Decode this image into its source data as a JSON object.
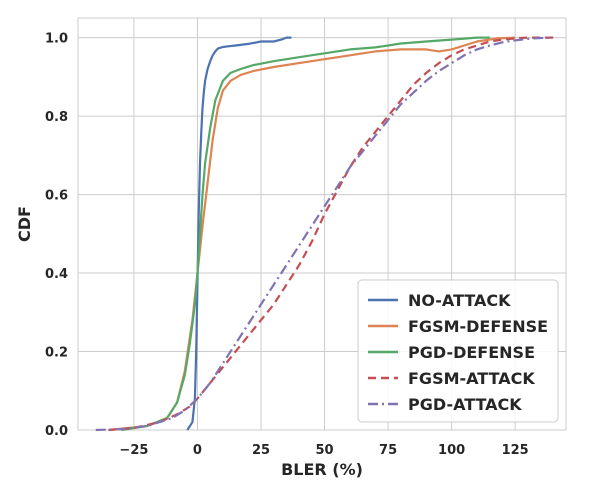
{
  "chart_data": {
    "type": "line",
    "title": "",
    "xlabel": "BLER (%)",
    "ylabel": "CDF",
    "xlim": [
      -47,
      145
    ],
    "ylim": [
      0,
      1.05
    ],
    "xticks": [
      -25,
      0,
      25,
      50,
      75,
      100,
      125
    ],
    "xtick_labels": [
      "−25",
      "0",
      "25",
      "50",
      "75",
      "100",
      "125"
    ],
    "yticks": [
      0,
      0.2,
      0.4,
      0.6,
      0.8,
      1.0
    ],
    "ytick_labels": [
      "0.0",
      "0.2",
      "0.4",
      "0.6",
      "0.8",
      "1.0"
    ],
    "grid": true,
    "legend_position": "lower-right",
    "series": [
      {
        "name": "NO-ATTACK",
        "color": "#4c72b0",
        "dash": "solid",
        "x": [
          -4,
          -2,
          -1,
          -0.5,
          0,
          0.5,
          1,
          1.5,
          2,
          2.5,
          3,
          4,
          5,
          6,
          7,
          8,
          10,
          12,
          15,
          20,
          25,
          30,
          33,
          35,
          37
        ],
        "y": [
          0,
          0.02,
          0.08,
          0.2,
          0.38,
          0.55,
          0.68,
          0.76,
          0.82,
          0.86,
          0.89,
          0.92,
          0.94,
          0.955,
          0.965,
          0.972,
          0.976,
          0.978,
          0.98,
          0.984,
          0.99,
          0.99,
          0.995,
          1.0,
          1.0
        ]
      },
      {
        "name": "FGSM-DEFENSE",
        "color": "#dd8452",
        "dash": "solid",
        "x": [
          -35,
          -20,
          -12,
          -8,
          -5,
          -2,
          0,
          2,
          4,
          6,
          8,
          10,
          13,
          17,
          22,
          30,
          40,
          50,
          60,
          70,
          80,
          90,
          95,
          100,
          105,
          110,
          118,
          125
        ],
        "y": [
          0,
          0.01,
          0.03,
          0.07,
          0.15,
          0.28,
          0.4,
          0.52,
          0.63,
          0.74,
          0.82,
          0.865,
          0.89,
          0.905,
          0.915,
          0.925,
          0.935,
          0.945,
          0.955,
          0.965,
          0.97,
          0.97,
          0.965,
          0.97,
          0.98,
          0.99,
          0.998,
          1.0
        ]
      },
      {
        "name": "PGD-DEFENSE",
        "color": "#55a868",
        "dash": "solid",
        "x": [
          -30,
          -20,
          -12,
          -8,
          -5,
          -3,
          -1,
          0,
          1,
          2,
          3,
          5,
          7,
          10,
          13,
          17,
          22,
          30,
          40,
          50,
          60,
          70,
          75,
          80,
          90,
          100,
          110,
          115
        ],
        "y": [
          0,
          0.01,
          0.03,
          0.07,
          0.14,
          0.22,
          0.32,
          0.4,
          0.5,
          0.6,
          0.68,
          0.77,
          0.84,
          0.89,
          0.91,
          0.92,
          0.93,
          0.94,
          0.95,
          0.96,
          0.97,
          0.975,
          0.98,
          0.985,
          0.99,
          0.995,
          1.0,
          1.0
        ]
      },
      {
        "name": "FGSM-ATTACK",
        "color": "#c44e52",
        "dash": "dashed",
        "x": [
          -35,
          -25,
          -15,
          -8,
          -3,
          0,
          5,
          10,
          15,
          20,
          25,
          30,
          35,
          40,
          45,
          50,
          55,
          60,
          65,
          70,
          75,
          80,
          85,
          90,
          95,
          100,
          105,
          110,
          115,
          120,
          125,
          130,
          140
        ],
        "y": [
          0,
          0.005,
          0.02,
          0.04,
          0.06,
          0.08,
          0.12,
          0.16,
          0.2,
          0.24,
          0.28,
          0.32,
          0.37,
          0.42,
          0.48,
          0.55,
          0.61,
          0.67,
          0.72,
          0.76,
          0.8,
          0.84,
          0.88,
          0.91,
          0.935,
          0.955,
          0.97,
          0.98,
          0.99,
          0.995,
          0.998,
          1.0,
          1.0
        ]
      },
      {
        "name": "PGD-ATTACK",
        "color": "#8172b3",
        "dash": "dashdot",
        "x": [
          -40,
          -30,
          -20,
          -10,
          -5,
          0,
          5,
          10,
          15,
          20,
          25,
          30,
          35,
          40,
          45,
          50,
          55,
          60,
          65,
          70,
          75,
          80,
          85,
          90,
          95,
          100,
          105,
          110,
          115,
          120,
          125,
          130,
          135,
          140
        ],
        "y": [
          0,
          0.002,
          0.01,
          0.03,
          0.05,
          0.08,
          0.12,
          0.17,
          0.22,
          0.27,
          0.32,
          0.37,
          0.42,
          0.47,
          0.52,
          0.57,
          0.62,
          0.67,
          0.71,
          0.75,
          0.79,
          0.83,
          0.86,
          0.89,
          0.915,
          0.935,
          0.955,
          0.97,
          0.98,
          0.988,
          0.993,
          0.997,
          0.999,
          1.0
        ]
      }
    ]
  }
}
